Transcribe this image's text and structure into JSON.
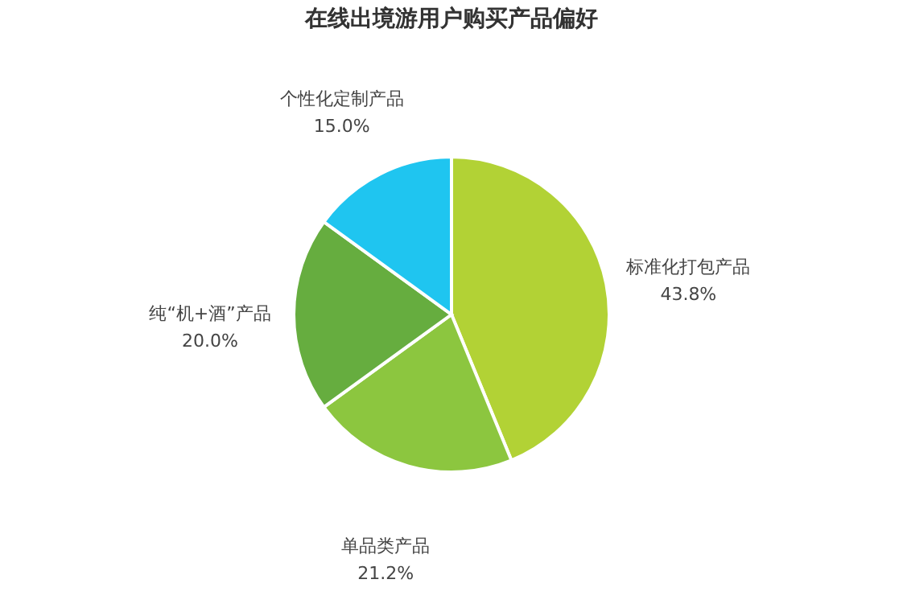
{
  "chart_data": {
    "type": "pie",
    "title": "在线出境游用户购买产品偏好",
    "categories": [
      "标准化打包产品",
      "单品类产品",
      "纯“机+酒”产品",
      "个性化定制产品"
    ],
    "values": [
      43.8,
      21.2,
      20.0,
      15.0
    ],
    "value_labels": [
      "43.8%",
      "21.2%",
      "20.0%",
      "15.0%"
    ],
    "colors": [
      "#b2d235",
      "#8cc63f",
      "#66ad3f",
      "#1fc5f0"
    ],
    "legend": false
  }
}
